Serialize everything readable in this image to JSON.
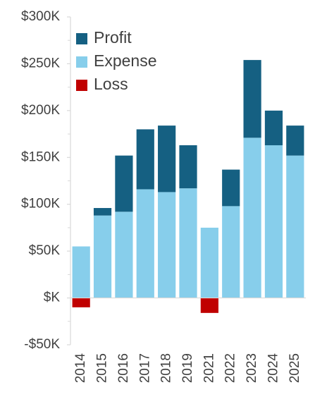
{
  "chart_data": {
    "type": "bar",
    "stacked": true,
    "categories": [
      "2014",
      "2015",
      "2016",
      "2017",
      "2018",
      "2019",
      "2021",
      "2022",
      "2023",
      "2024",
      "2025"
    ],
    "series": [
      {
        "name": "Expense",
        "color": "#87CEEB",
        "values": [
          55000,
          88000,
          92000,
          116000,
          113000,
          117000,
          75000,
          98000,
          171000,
          163000,
          152000
        ]
      },
      {
        "name": "Profit",
        "color": "#156082",
        "values": [
          0,
          8000,
          60000,
          64000,
          71000,
          46000,
          0,
          39000,
          83000,
          37000,
          32000
        ]
      },
      {
        "name": "Loss",
        "color": "#C00000",
        "values": [
          -10000,
          0,
          0,
          0,
          0,
          0,
          -16000,
          0,
          0,
          0,
          0
        ]
      }
    ],
    "legend_order": [
      "Profit",
      "Expense",
      "Loss"
    ],
    "ylim": [
      -50000,
      300000
    ],
    "y_ticks": [
      -50000,
      0,
      50000,
      100000,
      150000,
      200000,
      250000,
      300000
    ],
    "y_tick_labels": [
      "-$50K",
      "$K",
      "$50K",
      "$100K",
      "$150K",
      "$200K",
      "$250K",
      "$300K"
    ],
    "grid": false,
    "legend_position": "top-left",
    "axis_color": "#D9D9D9",
    "title": "",
    "xlabel": "",
    "ylabel": ""
  }
}
